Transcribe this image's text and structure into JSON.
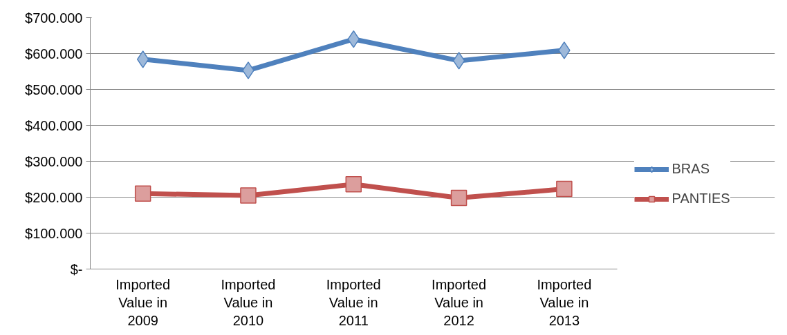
{
  "chart_data": {
    "type": "line",
    "categories": [
      "Imported Value in 2009",
      "Imported Value in 2010",
      "Imported Value in 2011",
      "Imported Value in 2012",
      "Imported Value in 2013"
    ],
    "series": [
      {
        "name": "BRAS",
        "color": "#4f81bd",
        "marker": "diamond",
        "values": [
          584,
          553,
          640,
          580,
          609
        ]
      },
      {
        "name": "PANTIES",
        "color": "#c0504d",
        "marker": "square",
        "values": [
          210,
          205,
          236,
          198,
          223
        ]
      }
    ],
    "ylim": [
      0,
      700
    ],
    "yticks": [
      {
        "value": 0,
        "label": "$-"
      },
      {
        "value": 100,
        "label": "$100.000"
      },
      {
        "value": 200,
        "label": "$200.000"
      },
      {
        "value": 300,
        "label": "$300.000"
      },
      {
        "value": 400,
        "label": "$400.000"
      },
      {
        "value": 500,
        "label": "$500.000"
      },
      {
        "value": 600,
        "label": "$600.000"
      },
      {
        "value": 700,
        "label": "$700.000"
      }
    ],
    "grid": "y",
    "legend": "right"
  }
}
